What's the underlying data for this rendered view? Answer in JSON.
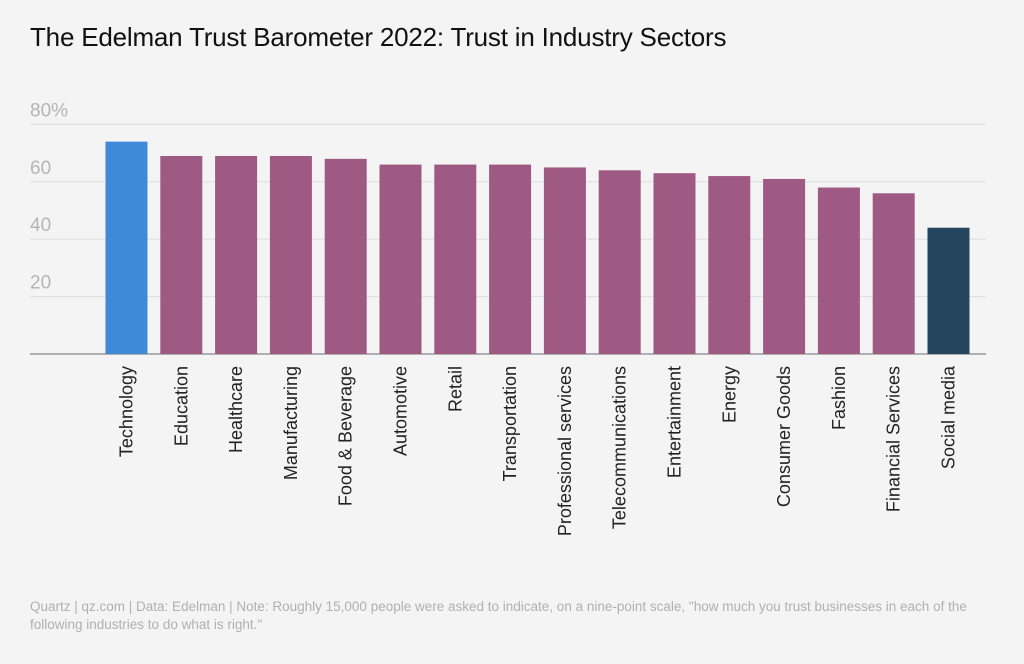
{
  "title": "The Edelman Trust Barometer 2022: Trust in Industry Sectors",
  "footer": "Quartz | qz.com | Data: Edelman | Note: Roughly 15,000 people were asked to indicate, on a nine-point scale, \"how much you trust businesses in each of the following industries to do what is right.\"",
  "colors": {
    "highlight_high": "#3f8ad8",
    "default": "#9e5a82",
    "highlight_low": "#25455f",
    "grid": "#dedede",
    "baseline": "#9a9a9a"
  },
  "chart_data": {
    "type": "bar",
    "title": "The Edelman Trust Barometer 2022: Trust in Industry Sectors",
    "xlabel": "",
    "ylabel": "",
    "ylim": [
      0,
      80
    ],
    "yticks": [
      20,
      40,
      60,
      80
    ],
    "ytick_labels": [
      "20",
      "40",
      "60",
      "80%"
    ],
    "grid": true,
    "categories": [
      "Technology",
      "Education",
      "Healthcare",
      "Manufacturing",
      "Food & Beverage",
      "Automotive",
      "Retail",
      "Transportation",
      "Professional services",
      "Telecommunications",
      "Entertainment",
      "Energy",
      "Consumer Goods",
      "Fashion",
      "Financial Services",
      "Social media"
    ],
    "values": [
      74,
      69,
      69,
      69,
      68,
      66,
      66,
      66,
      65,
      64,
      63,
      62,
      61,
      58,
      56,
      44
    ],
    "bar_colors": [
      "highlight_high",
      "default",
      "default",
      "default",
      "default",
      "default",
      "default",
      "default",
      "default",
      "default",
      "default",
      "default",
      "default",
      "default",
      "default",
      "highlight_low"
    ]
  }
}
